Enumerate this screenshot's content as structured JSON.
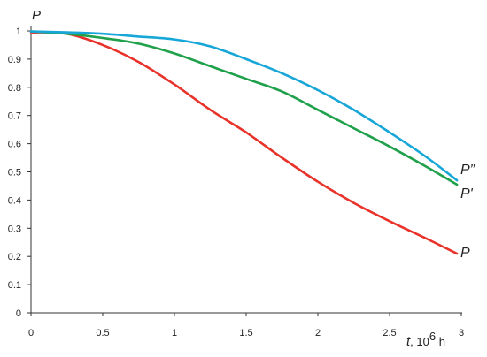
{
  "chart_data": {
    "type": "line",
    "ylabel": "P",
    "xlabel_var": "t",
    "xlabel_unit_prefix": ", 10",
    "xlabel_unit_exp": "6",
    "xlabel_unit_suffix": " h",
    "xlim": [
      0,
      3
    ],
    "ylim": [
      0,
      1
    ],
    "x_ticks": [
      0,
      0.5,
      1,
      1.5,
      2,
      2.5,
      3
    ],
    "x_tick_labels": [
      "0",
      "0.5",
      "1",
      "1.5",
      "2",
      "2.5",
      "3"
    ],
    "y_ticks": [
      0,
      0.1,
      0.2,
      0.3,
      0.4,
      0.5,
      0.6,
      0.7,
      0.8,
      0.9,
      1
    ],
    "y_tick_labels": [
      "0",
      "0.1",
      "0.2",
      "0.3",
      "0.4",
      "0.5",
      "0.6",
      "0.7",
      "0.8",
      "0.9",
      "1"
    ],
    "grid": false,
    "legend": "none",
    "series": [
      {
        "name": "P",
        "color": "#e8322a",
        "x": [
          0,
          0.25,
          0.5,
          0.75,
          1.0,
          1.25,
          1.5,
          1.75,
          2.0,
          2.25,
          2.5,
          2.75,
          2.97
        ],
        "y": [
          0.995,
          0.99,
          0.95,
          0.89,
          0.81,
          0.72,
          0.64,
          0.55,
          0.465,
          0.39,
          0.325,
          0.265,
          0.21
        ]
      },
      {
        "name": "P'",
        "color": "#1fa04a",
        "x": [
          0,
          0.25,
          0.5,
          0.75,
          1.0,
          1.25,
          1.5,
          1.75,
          2.0,
          2.25,
          2.5,
          2.75,
          2.97
        ],
        "y": [
          0.998,
          0.99,
          0.975,
          0.955,
          0.92,
          0.875,
          0.83,
          0.785,
          0.72,
          0.655,
          0.59,
          0.52,
          0.455
        ]
      },
      {
        "name": "P”",
        "color": "#17a6d8",
        "x": [
          0,
          0.25,
          0.5,
          0.75,
          1.0,
          1.25,
          1.5,
          1.75,
          2.0,
          2.25,
          2.5,
          2.75,
          2.97
        ],
        "y": [
          0.998,
          0.995,
          0.99,
          0.98,
          0.97,
          0.945,
          0.9,
          0.85,
          0.79,
          0.72,
          0.64,
          0.555,
          0.47
        ]
      }
    ]
  }
}
